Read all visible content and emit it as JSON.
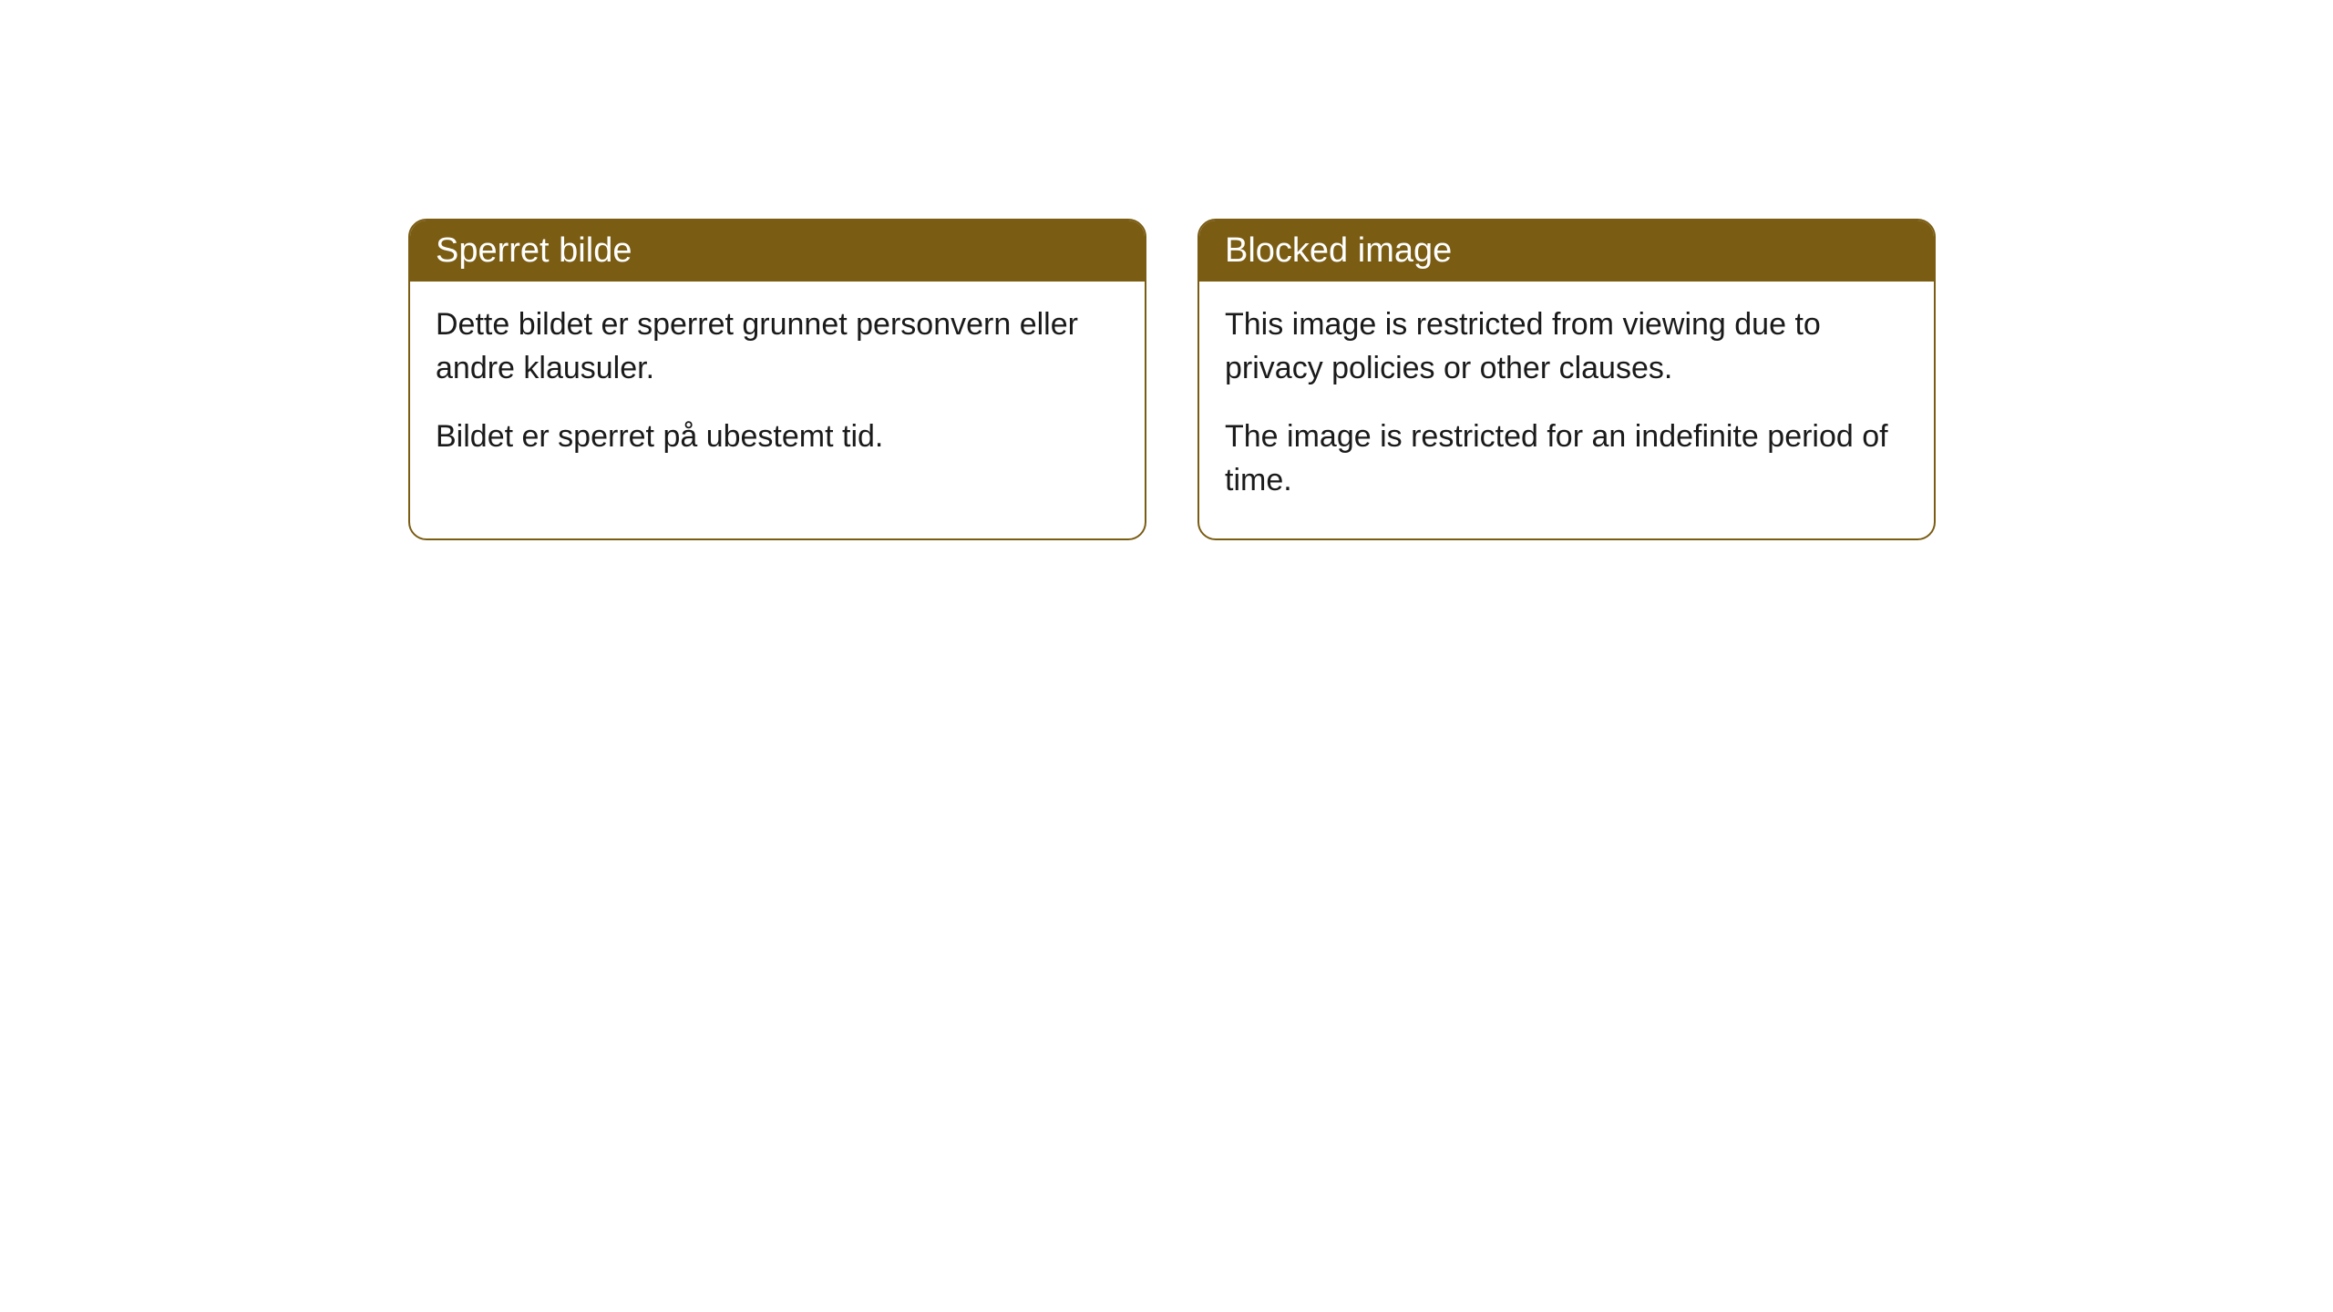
{
  "cards": [
    {
      "title": "Sperret bilde",
      "paragraph1": "Dette bildet er sperret grunnet personvern eller andre klausuler.",
      "paragraph2": "Bildet er sperret på ubestemt tid."
    },
    {
      "title": "Blocked image",
      "paragraph1": "This image is restricted from viewing due to privacy policies or other clauses.",
      "paragraph2": "The image is restricted for an indefinite period of time."
    }
  ],
  "style": {
    "header_bg_color": "#7a5c13",
    "header_text_color": "#ffffff",
    "border_color": "#7a5c13",
    "body_bg_color": "#ffffff",
    "body_text_color": "#1a1a1a",
    "border_radius": 20,
    "title_fontsize": 38,
    "body_fontsize": 34
  }
}
